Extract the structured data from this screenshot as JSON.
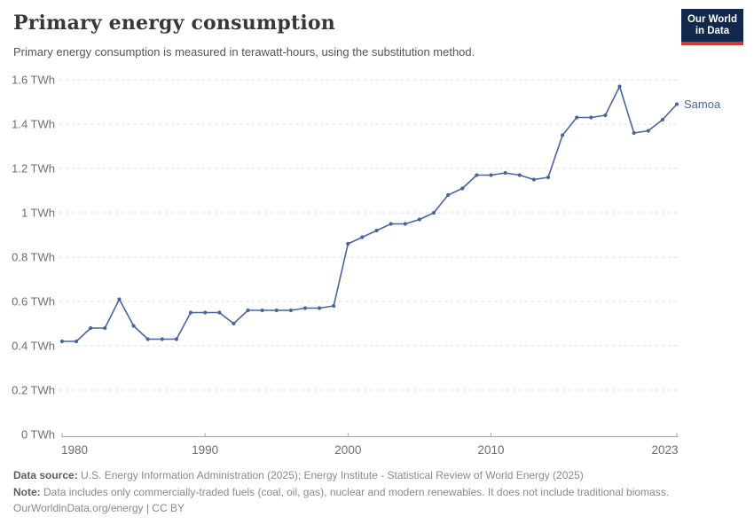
{
  "header": {
    "title": "Primary energy consumption",
    "subtitle": "Primary energy consumption is measured in terawatt-hours, using the substitution method."
  },
  "logo": {
    "line1": "Our World",
    "line2": "in Data"
  },
  "colors": {
    "line": "#4a649c",
    "series_label": "#4a649c",
    "grid": "#dcdcdc",
    "axis": "#a5a5a5",
    "tick_text": "#6e6e6e",
    "title_text": "#383636",
    "subtitle_text": "#555555",
    "footer_text": "#8a8a8a",
    "footer_label": "#5e5e5e",
    "logo_bg": "#12294d",
    "logo_stripe": "#d0392f"
  },
  "chart_data": {
    "type": "line",
    "title": "Primary energy consumption",
    "subtitle": "Primary energy consumption is measured in terawatt-hours, using the substitution method.",
    "unit": "TWh",
    "xlabel": "",
    "ylabel": "",
    "ylim": [
      0,
      1.6
    ],
    "grid": true,
    "legend_position": "end-of-line",
    "x": [
      1980,
      1981,
      1982,
      1983,
      1984,
      1985,
      1986,
      1987,
      1988,
      1989,
      1990,
      1991,
      1992,
      1993,
      1994,
      1995,
      1996,
      1997,
      1998,
      1999,
      2000,
      2001,
      2002,
      2003,
      2004,
      2005,
      2006,
      2007,
      2008,
      2009,
      2010,
      2011,
      2012,
      2013,
      2014,
      2015,
      2016,
      2017,
      2018,
      2019,
      2020,
      2021,
      2022,
      2023
    ],
    "series": [
      {
        "name": "Samoa",
        "values": [
          0.42,
          0.42,
          0.48,
          0.48,
          0.61,
          0.49,
          0.43,
          0.43,
          0.43,
          0.55,
          0.55,
          0.55,
          0.5,
          0.56,
          0.56,
          0.56,
          0.56,
          0.57,
          0.57,
          0.58,
          0.86,
          0.89,
          0.92,
          0.95,
          0.95,
          0.97,
          1.0,
          1.08,
          1.11,
          1.17,
          1.17,
          1.18,
          1.17,
          1.15,
          1.16,
          1.35,
          1.43,
          1.43,
          1.44,
          1.57,
          1.36,
          1.37,
          1.42,
          1.49
        ]
      }
    ],
    "yticks": [
      {
        "v": 0,
        "label": "0 TWh"
      },
      {
        "v": 0.2,
        "label": "0.2 TWh"
      },
      {
        "v": 0.4,
        "label": "0.4 TWh"
      },
      {
        "v": 0.6,
        "label": "0.6 TWh"
      },
      {
        "v": 0.8,
        "label": "0.8 TWh"
      },
      {
        "v": 1,
        "label": "1 TWh"
      },
      {
        "v": 1.2,
        "label": "1.2 TWh"
      },
      {
        "v": 1.4,
        "label": "1.4 TWh"
      },
      {
        "v": 1.6,
        "label": "1.6 TWh"
      }
    ],
    "xticks": [
      {
        "v": 1980,
        "label": "1980",
        "anchor": "start"
      },
      {
        "v": 1990,
        "label": "1990",
        "anchor": "middle"
      },
      {
        "v": 2000,
        "label": "2000",
        "anchor": "middle"
      },
      {
        "v": 2010,
        "label": "2010",
        "anchor": "middle"
      },
      {
        "v": 2023,
        "label": "2023",
        "anchor": "end"
      }
    ]
  },
  "footer": {
    "datasource_label": "Data source:",
    "datasource_text": "U.S. Energy Information Administration (2025); Energy Institute - Statistical Review of World Energy (2025)",
    "note_label": "Note:",
    "note_text": "Data includes only commercially-traded fuels (coal, oil, gas), nuclear and modern renewables. It does not include traditional biomass.",
    "license_text": "OurWorldinData.org/energy | CC BY"
  }
}
